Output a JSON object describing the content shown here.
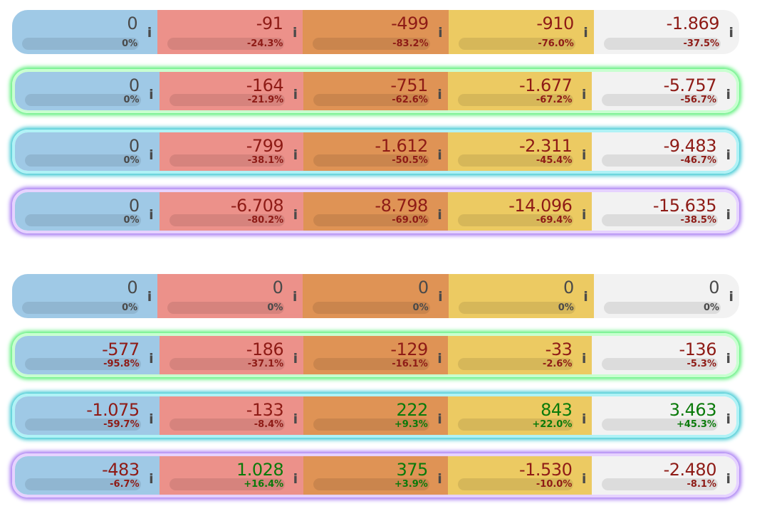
{
  "column_colors": [
    "#9fc9e6",
    "#ec918a",
    "#df9355",
    "#ecca62",
    "#f2f2f2"
  ],
  "rows": [
    {
      "glow": "none",
      "cells": [
        {
          "value": "0",
          "pct": "0%"
        },
        {
          "value": "-91",
          "pct": "-24.3%"
        },
        {
          "value": "-499",
          "pct": "-83.2%"
        },
        {
          "value": "-910",
          "pct": "-76.0%"
        },
        {
          "value": "-1.869",
          "pct": "-37.5%"
        }
      ]
    },
    {
      "glow": "green",
      "cells": [
        {
          "value": "0",
          "pct": "0%"
        },
        {
          "value": "-164",
          "pct": "-21.9%"
        },
        {
          "value": "-751",
          "pct": "-62.6%"
        },
        {
          "value": "-1.677",
          "pct": "-67.2%"
        },
        {
          "value": "-5.757",
          "pct": "-56.7%"
        }
      ]
    },
    {
      "glow": "cyan",
      "cells": [
        {
          "value": "0",
          "pct": "0%"
        },
        {
          "value": "-799",
          "pct": "-38.1%"
        },
        {
          "value": "-1.612",
          "pct": "-50.5%"
        },
        {
          "value": "-2.311",
          "pct": "-45.4%"
        },
        {
          "value": "-9.483",
          "pct": "-46.7%"
        }
      ]
    },
    {
      "glow": "purple",
      "cells": [
        {
          "value": "0",
          "pct": "0%"
        },
        {
          "value": "-6.708",
          "pct": "-80.2%"
        },
        {
          "value": "-8.798",
          "pct": "-69.0%"
        },
        {
          "value": "-14.096",
          "pct": "-69.4%"
        },
        {
          "value": "-15.635",
          "pct": "-38.5%"
        }
      ]
    },
    {
      "glow": "none",
      "cells": [
        {
          "value": "0",
          "pct": "0%"
        },
        {
          "value": "0",
          "pct": "0%"
        },
        {
          "value": "0",
          "pct": "0%"
        },
        {
          "value": "0",
          "pct": "0%"
        },
        {
          "value": "0",
          "pct": "0%"
        }
      ]
    },
    {
      "glow": "green",
      "cells": [
        {
          "value": "-577",
          "pct": "-95.8%"
        },
        {
          "value": "-186",
          "pct": "-37.1%"
        },
        {
          "value": "-129",
          "pct": "-16.1%"
        },
        {
          "value": "-33",
          "pct": "-2.6%"
        },
        {
          "value": "-136",
          "pct": "-5.3%"
        }
      ]
    },
    {
      "glow": "cyan",
      "cells": [
        {
          "value": "-1.075",
          "pct": "-59.7%"
        },
        {
          "value": "-133",
          "pct": "-8.4%"
        },
        {
          "value": "222",
          "pct": "+9.3%"
        },
        {
          "value": "843",
          "pct": "+22.0%"
        },
        {
          "value": "3.463",
          "pct": "+45.3%"
        }
      ]
    },
    {
      "glow": "purple",
      "cells": [
        {
          "value": "-483",
          "pct": "-6.7%"
        },
        {
          "value": "1.028",
          "pct": "+16.4%"
        },
        {
          "value": "375",
          "pct": "+3.9%"
        },
        {
          "value": "-1.530",
          "pct": "-10.0%"
        },
        {
          "value": "-2.480",
          "pct": "-8.1%"
        }
      ]
    }
  ],
  "info_icon": "info-icon",
  "info_glyph": "i"
}
